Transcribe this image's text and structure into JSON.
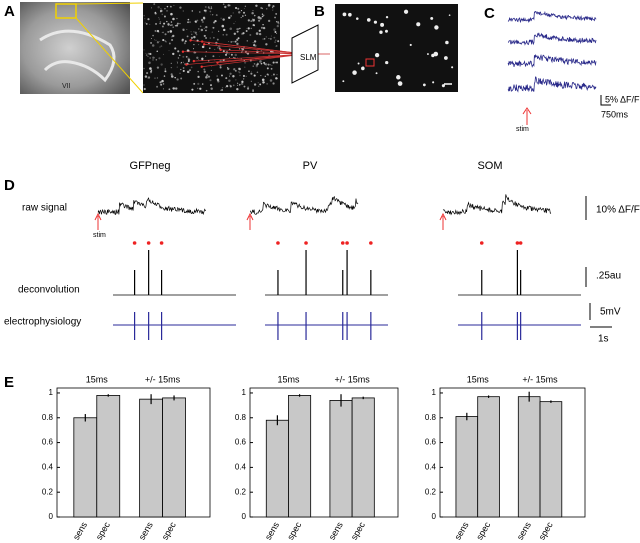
{
  "panel_labels": [
    "A",
    "B",
    "C",
    "D",
    "E"
  ],
  "panel_a": {
    "slm_label": "SLM",
    "image_label": "VII"
  },
  "panel_c": {
    "scale_y": "5% ΔF/F",
    "scale_x": "750ms",
    "stim": "stim"
  },
  "panel_d": {
    "columns": [
      "GFPneg",
      "PV",
      "SOM"
    ],
    "rows": [
      "raw signal",
      "deconvolution",
      "electrophysiology"
    ],
    "stim": "stim",
    "scales": [
      "10% ΔF/F",
      ".25au",
      "5mV",
      "1s"
    ]
  },
  "chart_data": [
    {
      "type": "bar",
      "group_labels": [
        "15ms",
        "+/- 15ms"
      ],
      "categories": [
        "sens",
        "spec",
        "sens",
        "spec"
      ],
      "values": [
        0.8,
        0.98,
        0.95,
        0.96
      ],
      "errors": [
        0.03,
        0.01,
        0.04,
        0.02
      ],
      "color": "#c8c8c8",
      "ylim": [
        0,
        1.04
      ],
      "yticks": [
        0,
        0.2,
        0.4,
        0.6,
        0.8,
        1
      ]
    },
    {
      "type": "bar",
      "group_labels": [
        "15ms",
        "+/- 15ms"
      ],
      "categories": [
        "sens",
        "spec",
        "sens",
        "spec"
      ],
      "values": [
        0.78,
        0.98,
        0.94,
        0.96
      ],
      "errors": [
        0.04,
        0.01,
        0.05,
        0.01
      ],
      "color": "#c8c8c8",
      "ylim": [
        0,
        1.04
      ],
      "yticks": [
        0,
        0.2,
        0.4,
        0.6,
        0.8,
        1
      ]
    },
    {
      "type": "bar",
      "group_labels": [
        "15ms",
        "+/- 15ms"
      ],
      "categories": [
        "sens",
        "spec",
        "sens",
        "spec"
      ],
      "values": [
        0.81,
        0.97,
        0.97,
        0.93
      ],
      "errors": [
        0.03,
        0.01,
        0.04,
        0.01
      ],
      "color": "#c8c8c8",
      "ylim": [
        0,
        1.04
      ],
      "yticks": [
        0,
        0.2,
        0.4,
        0.6,
        0.8,
        1
      ]
    }
  ]
}
